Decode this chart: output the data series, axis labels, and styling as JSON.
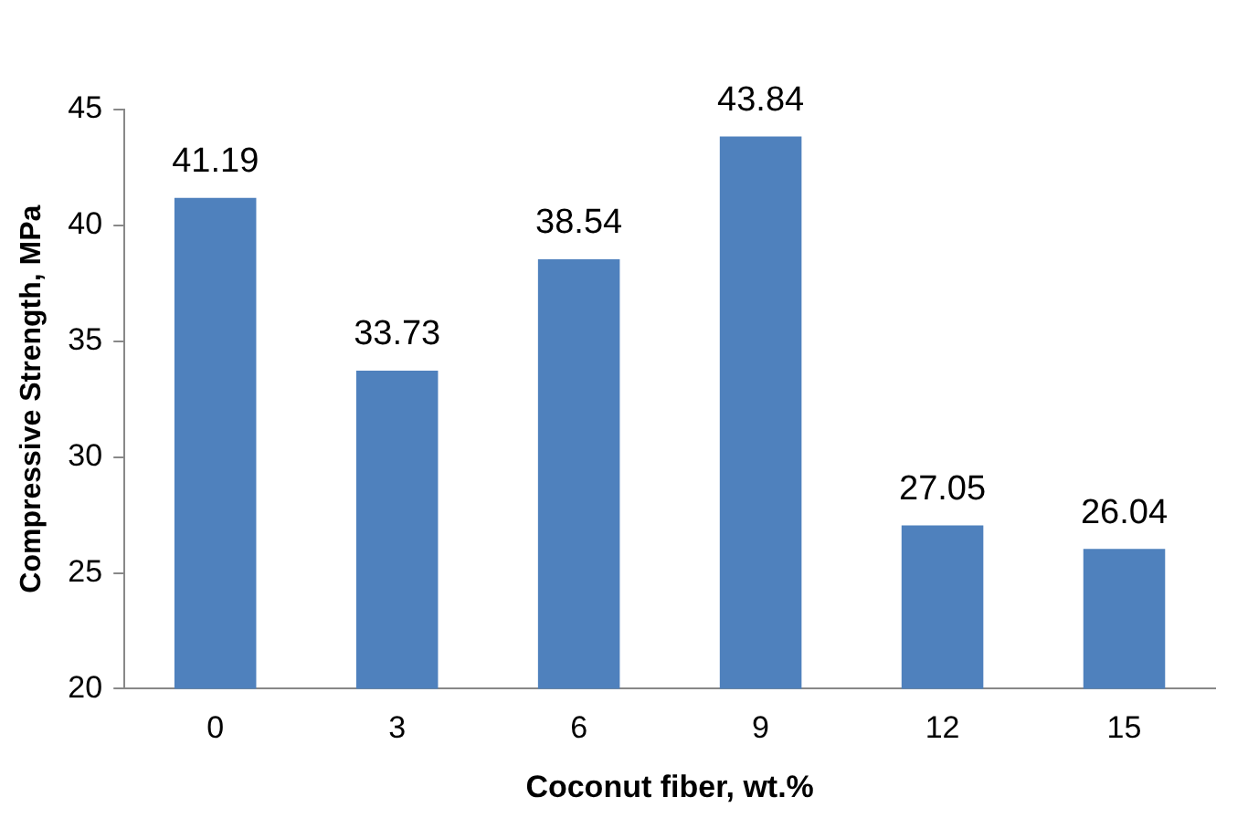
{
  "chart_data": {
    "type": "bar",
    "xlabel": "Coconut fiber, wt.%",
    "ylabel": "Compressive Strength, MPa",
    "categories": [
      "0",
      "3",
      "6",
      "9",
      "12",
      "15"
    ],
    "values": [
      41.19,
      33.73,
      38.54,
      43.84,
      27.05,
      26.04
    ],
    "color": "#4f81bd",
    "ylim": [
      20,
      45
    ],
    "yticks": [
      20,
      25,
      30,
      35,
      40,
      45
    ],
    "data_labels": true,
    "grid": false,
    "legend": false
  }
}
